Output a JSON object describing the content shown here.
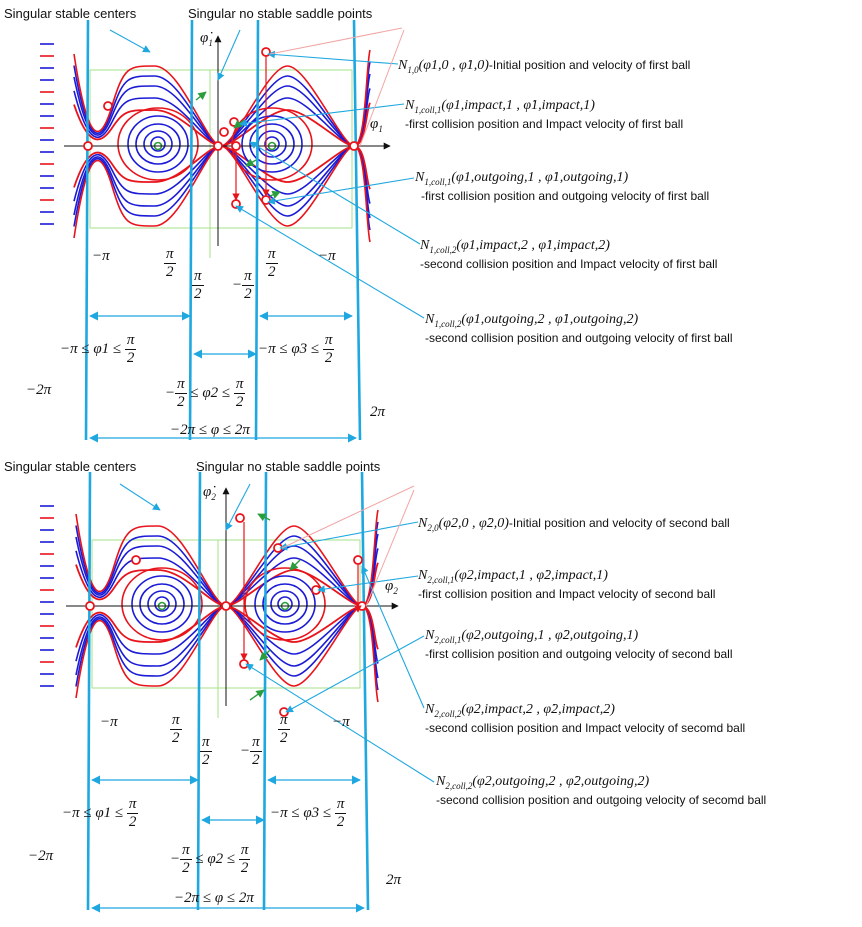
{
  "panel1": {
    "title_left": "Singular stable centers",
    "title_right": "Singular no stable saddle points",
    "axis_phi": "φ",
    "axis_phi_sub": "1",
    "axis_dphi": "φ̇",
    "axis_dphi_sub": "1",
    "annotations": [
      {
        "n": "N",
        "sub": "1,0",
        "args": "(φ1,0 , φ̇1,0)",
        "desc": "-Initial position and velocity of first ball",
        "line2": ""
      },
      {
        "n": "N",
        "sub": "1,coll,1",
        "args": "(φ1,impact,1 , φ̇1,impact,1)",
        "desc": "",
        "line2": "-first collision position and Impact velocity of first ball"
      },
      {
        "n": "N",
        "sub": "1,coll,1",
        "args": "(φ1,outgoing,1 , φ̇1,outgoing,1)",
        "desc": "",
        "line2": "-first collision position and outgoing velocity of first ball"
      },
      {
        "n": "N",
        "sub": "1,coll,2",
        "args": "(φ1,impact,2 , φ̇1,impact,2)",
        "desc": "",
        "line2": "-second collision position and Impact velocity of first ball"
      },
      {
        "n": "N",
        "sub": "1,coll,2",
        "args": "(φ1,outgoing,2 , φ̇1,outgoing,2)",
        "desc": "",
        "line2": "-second collision position and outgoing velocity of first ball"
      }
    ]
  },
  "panel2": {
    "title_left": "Singular stable centers",
    "title_right": "Singular no stable saddle points",
    "axis_phi": "φ",
    "axis_phi_sub": "2",
    "axis_dphi": "φ̇",
    "axis_dphi_sub": "2",
    "annotations": [
      {
        "n": "N",
        "sub": "2,0",
        "args": "(φ2,0 , φ̇2,0)",
        "desc": "-Initial position and velocity of second ball",
        "line2": ""
      },
      {
        "n": "N",
        "sub": "2,coll,1",
        "args": "(φ2,impact,1 , φ̇2,impact,1)",
        "desc": "",
        "line2": "-first collision position and Impact velocity of second ball"
      },
      {
        "n": "N",
        "sub": "2,coll,1",
        "args": "(φ2,outgoing,1 , φ̇2,outgoing,1)",
        "desc": "",
        "line2": "-first collision position and outgoing velocity of second ball"
      },
      {
        "n": "N",
        "sub": "2,coll,2",
        "args": "(φ2,impact,2 , φ̇2,impact,2)",
        "desc": "",
        "line2": "-second collision position and Impact velocity of secomd ball"
      },
      {
        "n": "N",
        "sub": "2,coll,2",
        "args": "(φ2,outgoing,2 , φ̇2,outgoing,2)",
        "desc": "",
        "line2": "-second collision position and outgoing velocity of secomd ball"
      }
    ]
  },
  "math": {
    "neg_pi": "−π",
    "pi": "π",
    "two": "2",
    "neg": "−",
    "neg_two_pi": "−2π",
    "two_pi": "2π",
    "range1": "−π ≤ φ1 ≤",
    "range2": "≤ φ2 ≤",
    "range3": "−π ≤ φ3 ≤",
    "range_all": "−2π ≤ φ ≤ 2π"
  },
  "colors": {
    "red": "#e8141c",
    "blue": "#1b1bd6",
    "cyan": "#1fa8e0",
    "green": "#2a9d3c",
    "axis": "#111111"
  }
}
